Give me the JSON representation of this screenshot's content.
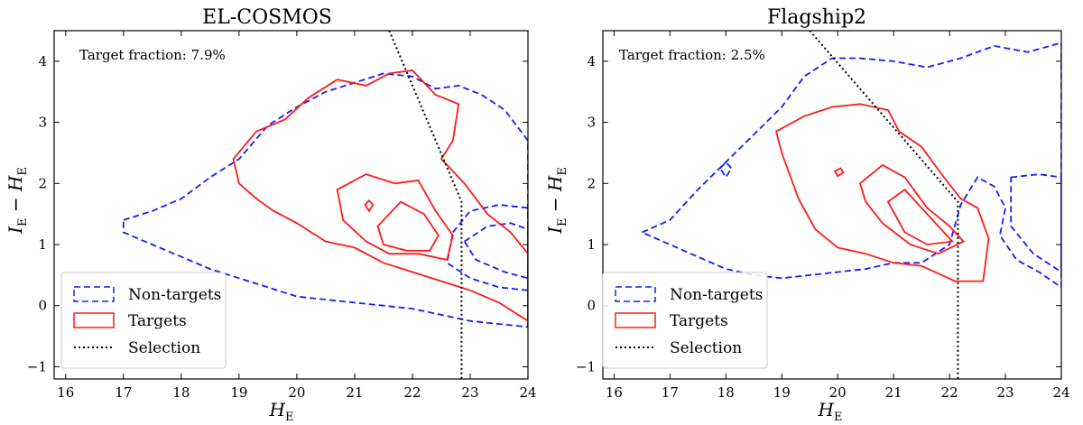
{
  "colors": {
    "targets": "#ff1a1a",
    "non_targets": "#1a1aff",
    "selection": "#000000"
  },
  "chart_data": [
    {
      "type": "contour",
      "title": "EL-COSMOS",
      "annotation": "Target fraction: 7.9%",
      "xlabel": "H",
      "xlabel_sub": "E",
      "ylabel": "I",
      "ylabel_sub": "E",
      "ylabel_mid": " − H",
      "ylabel_sub2": "E",
      "xlim": [
        15.8,
        24
      ],
      "ylim": [
        -1.2,
        4.5
      ],
      "xticks": [
        16,
        17,
        18,
        19,
        20,
        21,
        22,
        23,
        24
      ],
      "yticks": [
        -1,
        0,
        1,
        2,
        3,
        4
      ],
      "legend": {
        "position": "lower-left",
        "entries": [
          "Non-targets",
          "Targets",
          "Selection"
        ]
      },
      "selection": [
        [
          21.6,
          4.5
        ],
        [
          22.85,
          1.7
        ],
        [
          22.85,
          -1.2
        ]
      ],
      "non_targets": [
        [
          [
            17.0,
            1.4
          ],
          [
            17.5,
            1.55
          ],
          [
            18.0,
            1.75
          ],
          [
            18.5,
            2.1
          ],
          [
            19.0,
            2.4
          ],
          [
            19.5,
            2.95
          ],
          [
            20.0,
            3.25
          ],
          [
            20.5,
            3.5
          ],
          [
            21.0,
            3.65
          ],
          [
            21.5,
            3.8
          ],
          [
            22.0,
            3.75
          ],
          [
            22.4,
            3.55
          ],
          [
            22.8,
            3.6
          ],
          [
            23.2,
            3.45
          ],
          [
            23.6,
            3.2
          ],
          [
            24.0,
            2.7
          ],
          [
            24.0,
            -0.35
          ],
          [
            23.5,
            -0.3
          ],
          [
            23.0,
            -0.25
          ],
          [
            22.5,
            -0.15
          ],
          [
            22.0,
            -0.05
          ],
          [
            21.5,
            0.0
          ],
          [
            21.0,
            0.05
          ],
          [
            20.5,
            0.1
          ],
          [
            20.0,
            0.15
          ],
          [
            19.5,
            0.3
          ],
          [
            19.0,
            0.45
          ],
          [
            18.5,
            0.6
          ],
          [
            18.0,
            0.8
          ],
          [
            17.5,
            1.0
          ],
          [
            17.0,
            1.2
          ]
        ],
        [
          [
            22.7,
            1.2
          ],
          [
            23.0,
            1.55
          ],
          [
            23.5,
            1.65
          ],
          [
            24.0,
            1.6
          ],
          [
            24.0,
            0.25
          ],
          [
            23.5,
            0.3
          ],
          [
            23.0,
            0.45
          ],
          [
            22.6,
            0.7
          ]
        ],
        [
          [
            22.9,
            1.05
          ],
          [
            23.3,
            1.3
          ],
          [
            23.7,
            1.35
          ],
          [
            24.0,
            1.25
          ],
          [
            24.0,
            0.45
          ],
          [
            23.6,
            0.55
          ],
          [
            23.1,
            0.75
          ]
        ]
      ],
      "targets": [
        [
          [
            18.9,
            2.4
          ],
          [
            19.3,
            2.85
          ],
          [
            19.8,
            3.05
          ],
          [
            20.2,
            3.4
          ],
          [
            20.7,
            3.7
          ],
          [
            21.2,
            3.6
          ],
          [
            21.6,
            3.8
          ],
          [
            22.0,
            3.85
          ],
          [
            22.4,
            3.45
          ],
          [
            22.8,
            3.3
          ],
          [
            22.7,
            2.7
          ],
          [
            22.5,
            2.4
          ],
          [
            22.9,
            2.0
          ],
          [
            23.3,
            1.5
          ],
          [
            23.7,
            1.2
          ],
          [
            24.0,
            0.85
          ],
          [
            24.0,
            -0.25
          ],
          [
            23.5,
            0.05
          ],
          [
            23.0,
            0.25
          ],
          [
            22.5,
            0.4
          ],
          [
            22.0,
            0.55
          ],
          [
            21.5,
            0.7
          ],
          [
            21.0,
            0.95
          ],
          [
            20.5,
            1.05
          ],
          [
            20.0,
            1.35
          ],
          [
            19.6,
            1.55
          ],
          [
            19.3,
            1.75
          ],
          [
            19.0,
            2.0
          ]
        ],
        [
          [
            20.7,
            1.9
          ],
          [
            21.2,
            2.15
          ],
          [
            21.7,
            2.0
          ],
          [
            22.1,
            2.05
          ],
          [
            22.4,
            1.55
          ],
          [
            22.7,
            1.15
          ],
          [
            22.6,
            0.75
          ],
          [
            22.1,
            0.85
          ],
          [
            21.6,
            0.85
          ],
          [
            21.2,
            1.05
          ],
          [
            20.8,
            1.4
          ]
        ],
        [
          [
            21.4,
            1.3
          ],
          [
            21.8,
            1.7
          ],
          [
            22.2,
            1.5
          ],
          [
            22.45,
            1.15
          ],
          [
            22.3,
            0.9
          ],
          [
            21.9,
            0.9
          ],
          [
            21.5,
            1.0
          ]
        ],
        [
          [
            21.18,
            1.65
          ],
          [
            21.25,
            1.72
          ],
          [
            21.32,
            1.65
          ],
          [
            21.25,
            1.55
          ]
        ]
      ]
    },
    {
      "type": "contour",
      "title": "Flagship2",
      "annotation": "Target fraction: 2.5%",
      "xlabel": "H",
      "xlabel_sub": "E",
      "ylabel": "I",
      "ylabel_sub": "E",
      "ylabel_mid": " − H",
      "ylabel_sub2": "E",
      "xlim": [
        15.8,
        24
      ],
      "ylim": [
        -1.2,
        4.5
      ],
      "xticks": [
        16,
        17,
        18,
        19,
        20,
        21,
        22,
        23,
        24
      ],
      "yticks": [
        -1,
        0,
        1,
        2,
        3,
        4
      ],
      "legend": {
        "position": "lower-left",
        "entries": [
          "Non-targets",
          "Targets",
          "Selection"
        ]
      },
      "selection": [
        [
          19.5,
          4.5
        ],
        [
          22.15,
          1.7
        ],
        [
          22.15,
          -1.2
        ]
      ],
      "non_targets": [
        [
          [
            16.5,
            1.2
          ],
          [
            17.0,
            1.4
          ],
          [
            17.5,
            1.9
          ],
          [
            18.0,
            2.35
          ],
          [
            18.5,
            2.8
          ],
          [
            19.0,
            3.25
          ],
          [
            19.4,
            3.75
          ],
          [
            19.9,
            4.05
          ],
          [
            20.4,
            4.05
          ],
          [
            21.0,
            4.0
          ],
          [
            21.6,
            3.9
          ],
          [
            22.2,
            4.05
          ],
          [
            22.8,
            4.25
          ],
          [
            23.4,
            4.15
          ],
          [
            24.0,
            4.3
          ],
          [
            24.0,
            0.3
          ],
          [
            23.6,
            0.55
          ],
          [
            23.2,
            0.75
          ],
          [
            22.9,
            1.15
          ],
          [
            23.0,
            1.6
          ],
          [
            22.8,
            1.95
          ],
          [
            22.5,
            2.1
          ],
          [
            22.2,
            1.65
          ],
          [
            22.0,
            1.0
          ],
          [
            21.5,
            0.7
          ],
          [
            21.0,
            0.7
          ],
          [
            20.5,
            0.6
          ],
          [
            20.0,
            0.55
          ],
          [
            19.5,
            0.5
          ],
          [
            19.0,
            0.45
          ],
          [
            18.5,
            0.5
          ],
          [
            18.0,
            0.6
          ],
          [
            17.5,
            0.8
          ],
          [
            17.0,
            1.0
          ]
        ],
        [
          [
            23.1,
            2.1
          ],
          [
            23.6,
            2.15
          ],
          [
            24.0,
            2.1
          ],
          [
            24.0,
            0.55
          ],
          [
            23.5,
            0.85
          ],
          [
            23.1,
            1.3
          ]
        ],
        [
          [
            17.9,
            2.25
          ],
          [
            18.0,
            2.35
          ],
          [
            18.1,
            2.25
          ],
          [
            18.0,
            2.1
          ]
        ]
      ],
      "targets": [
        [
          [
            18.9,
            2.85
          ],
          [
            19.4,
            3.1
          ],
          [
            19.9,
            3.25
          ],
          [
            20.4,
            3.3
          ],
          [
            20.9,
            3.2
          ],
          [
            21.1,
            2.85
          ],
          [
            21.5,
            2.6
          ],
          [
            21.9,
            2.1
          ],
          [
            22.2,
            1.75
          ],
          [
            22.5,
            1.6
          ],
          [
            22.7,
            1.1
          ],
          [
            22.6,
            0.4
          ],
          [
            22.1,
            0.4
          ],
          [
            21.5,
            0.65
          ],
          [
            21.0,
            0.7
          ],
          [
            20.5,
            0.85
          ],
          [
            20.0,
            0.95
          ],
          [
            19.6,
            1.25
          ],
          [
            19.3,
            1.75
          ],
          [
            19.0,
            2.5
          ]
        ],
        [
          [
            20.4,
            2.0
          ],
          [
            20.8,
            2.3
          ],
          [
            21.2,
            2.1
          ],
          [
            21.6,
            1.6
          ],
          [
            22.0,
            1.3
          ],
          [
            22.25,
            1.05
          ],
          [
            21.8,
            0.85
          ],
          [
            21.3,
            1.0
          ],
          [
            20.8,
            1.35
          ],
          [
            20.5,
            1.7
          ]
        ],
        [
          [
            20.9,
            1.7
          ],
          [
            21.2,
            1.9
          ],
          [
            21.6,
            1.5
          ],
          [
            22.05,
            1.05
          ],
          [
            21.6,
            1.0
          ],
          [
            21.2,
            1.2
          ]
        ],
        [
          [
            19.95,
            2.2
          ],
          [
            20.05,
            2.25
          ],
          [
            20.1,
            2.18
          ],
          [
            20.0,
            2.12
          ]
        ]
      ]
    }
  ]
}
